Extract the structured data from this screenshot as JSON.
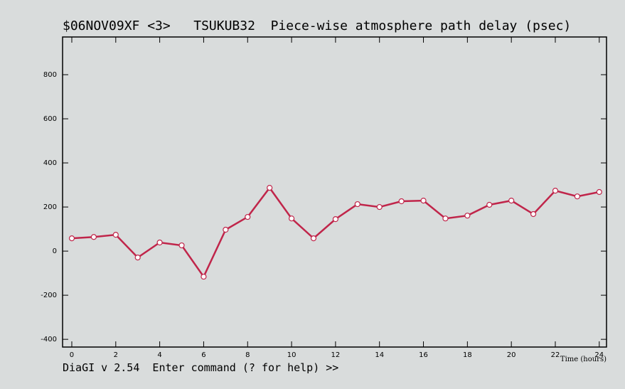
{
  "chart_data": {
    "type": "line",
    "title": "$06NOV09XF <3>   TSUKUB32  Piece-wise atmosphere path delay (psec)",
    "x_label": "Time (hours)",
    "footer": "DiaGI v 2.54  Enter command (? for help) >>",
    "x": [
      0,
      1,
      2,
      3,
      4,
      5,
      6,
      7,
      8,
      9,
      10,
      11,
      12,
      13,
      14,
      15,
      16,
      17,
      18,
      19,
      20,
      21,
      22,
      23,
      24
    ],
    "series": [
      {
        "color": "#c0254a",
        "values": [
          58,
          64,
          74,
          -29,
          39,
          26,
          -116,
          97,
          155,
          287,
          148,
          58,
          145,
          213,
          200,
          226,
          229,
          148,
          161,
          210,
          229,
          168,
          274,
          248,
          268
        ]
      }
    ],
    "xlim": [
      -0.42,
      24.33
    ],
    "xticks": [
      0,
      2,
      4,
      6,
      8,
      10,
      12,
      14,
      16,
      18,
      20,
      22,
      24
    ],
    "ylim": [
      -435,
      971
    ],
    "yticks": [
      -400,
      -200,
      0,
      200,
      400,
      600,
      800
    ]
  }
}
